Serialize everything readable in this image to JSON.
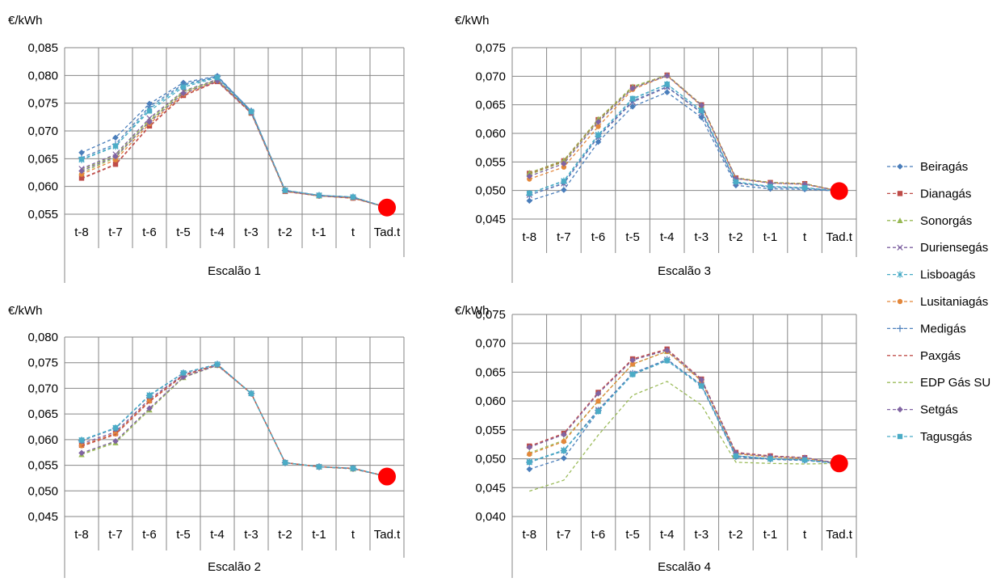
{
  "categories": [
    "t-8",
    "t-7",
    "t-6",
    "t-5",
    "t-4",
    "t-3",
    "t-2",
    "t-1",
    "t",
    "Tad.t"
  ],
  "legend": [
    {
      "name": "Beiragás",
      "color": "#4a7ebb",
      "marker": "diamond"
    },
    {
      "name": "Dianagás",
      "color": "#be4b48",
      "marker": "square"
    },
    {
      "name": "Sonorgás",
      "color": "#98b954",
      "marker": "triangle"
    },
    {
      "name": "Duriensegás",
      "color": "#7d60a0",
      "marker": "x"
    },
    {
      "name": "Lisboagás",
      "color": "#46aac5",
      "marker": "star"
    },
    {
      "name": "Lusitaniagás",
      "color": "#e3873b",
      "marker": "circle"
    },
    {
      "name": "Medigás",
      "color": "#4f81bd",
      "marker": "plus"
    },
    {
      "name": "Paxgás",
      "color": "#c0504d",
      "marker": "none"
    },
    {
      "name": "EDP Gás SU",
      "color": "#9bbb59",
      "marker": "none"
    },
    {
      "name": "Setgás",
      "color": "#8064a2",
      "marker": "diamond"
    },
    {
      "name": "Tagusgás",
      "color": "#4bacc6",
      "marker": "square"
    }
  ],
  "chart_data": [
    {
      "type": "line",
      "title": "Escalão 1",
      "ylabel": "€/kWh",
      "ylim": [
        0.055,
        0.085
      ],
      "ytick_step": 0.005,
      "yticks": [
        "0,055",
        "0,060",
        "0,065",
        "0,070",
        "0,075",
        "0,080",
        "0,085"
      ],
      "categories": [
        "t-8",
        "t-7",
        "t-6",
        "t-5",
        "t-4",
        "t-3",
        "t-2",
        "t-1",
        "t",
        "Tad.t"
      ],
      "grid": true,
      "series": [
        {
          "name": "Beiragás",
          "values": [
            0.0661,
            0.0688,
            0.0749,
            0.0787,
            0.0799,
            0.0736,
            0.0592,
            0.0584,
            0.058,
            null
          ]
        },
        {
          "name": "Dianagás",
          "values": [
            0.0615,
            0.064,
            0.0709,
            0.0764,
            0.0789,
            0.0732,
            0.0591,
            0.0583,
            0.0579,
            null
          ]
        },
        {
          "name": "Sonorgás",
          "values": [
            0.0625,
            0.0652,
            0.0718,
            0.077,
            0.0792,
            0.0733,
            0.0592,
            0.0583,
            0.058,
            null
          ]
        },
        {
          "name": "Duriensegás",
          "values": [
            0.0632,
            0.0658,
            0.0723,
            0.0772,
            0.0793,
            0.0734,
            0.0592,
            0.0584,
            0.058,
            null
          ]
        },
        {
          "name": "Lisboagás",
          "values": [
            0.0648,
            0.0672,
            0.074,
            0.0782,
            0.0797,
            0.0735,
            0.0593,
            0.0584,
            0.0581,
            null
          ]
        },
        {
          "name": "Lusitaniagás",
          "values": [
            0.0622,
            0.0648,
            0.0713,
            0.0766,
            0.079,
            0.0733,
            0.0591,
            0.0583,
            0.0579,
            null
          ]
        },
        {
          "name": "Medigás",
          "values": [
            0.0652,
            0.0676,
            0.0744,
            0.0784,
            0.0798,
            0.0736,
            0.0593,
            0.0584,
            0.0581,
            null
          ]
        },
        {
          "name": "Paxgás",
          "values": [
            0.0614,
            0.0639,
            0.0708,
            0.0763,
            0.0789,
            0.0732,
            0.0591,
            0.0583,
            0.0579,
            null
          ]
        },
        {
          "name": "EDP Gás SU",
          "values": [
            0.063,
            0.0656,
            0.072,
            0.0771,
            0.0791,
            0.0733,
            0.0592,
            0.0583,
            0.058,
            null
          ]
        },
        {
          "name": "Setgás",
          "values": [
            0.0628,
            0.0654,
            0.0716,
            0.0768,
            0.079,
            0.0733,
            0.0592,
            0.0583,
            0.058,
            null
          ]
        },
        {
          "name": "Tagusgás",
          "values": [
            0.0649,
            0.0673,
            0.0736,
            0.0779,
            0.0796,
            0.0735,
            0.0593,
            0.0584,
            0.0581,
            null
          ]
        }
      ],
      "tad_point": {
        "category": "Tad.t",
        "value": 0.0562,
        "color": "#ff0000"
      }
    },
    {
      "type": "line",
      "title": "Escalão 2",
      "ylabel": "€/kWh",
      "ylim": [
        0.045,
        0.08
      ],
      "ytick_step": 0.005,
      "yticks": [
        "0,045",
        "0,050",
        "0,055",
        "0,060",
        "0,065",
        "0,070",
        "0,075",
        "0,080"
      ],
      "categories": [
        "t-8",
        "t-7",
        "t-6",
        "t-5",
        "t-4",
        "t-3",
        "t-2",
        "t-1",
        "t",
        "Tad.t"
      ],
      "grid": true,
      "series": [
        {
          "name": "Beiragás",
          "values": [
            0.0598,
            0.0622,
            0.0686,
            0.073,
            0.0747,
            0.069,
            0.0555,
            0.0547,
            0.0544,
            null
          ]
        },
        {
          "name": "Dianagás",
          "values": [
            0.0589,
            0.0612,
            0.0676,
            0.0726,
            0.0746,
            0.069,
            0.0555,
            0.0547,
            0.0544,
            null
          ]
        },
        {
          "name": "Sonorgás",
          "values": [
            0.0571,
            0.0594,
            0.0658,
            0.0721,
            0.0745,
            0.069,
            0.0555,
            0.0547,
            0.0543,
            null
          ]
        },
        {
          "name": "Duriensegás",
          "values": [
            0.0592,
            0.0615,
            0.0679,
            0.0727,
            0.0746,
            0.069,
            0.0555,
            0.0547,
            0.0544,
            null
          ]
        },
        {
          "name": "Lisboagás",
          "values": [
            0.0599,
            0.0623,
            0.0687,
            0.073,
            0.0747,
            0.069,
            0.0555,
            0.0547,
            0.0544,
            null
          ]
        },
        {
          "name": "Lusitaniagás",
          "values": [
            0.0588,
            0.0611,
            0.0675,
            0.0725,
            0.0746,
            0.069,
            0.0555,
            0.0547,
            0.0544,
            null
          ]
        },
        {
          "name": "Medigás",
          "values": [
            0.0598,
            0.0622,
            0.0686,
            0.073,
            0.0747,
            0.069,
            0.0555,
            0.0547,
            0.0544,
            null
          ]
        },
        {
          "name": "Paxgás",
          "values": [
            0.0587,
            0.061,
            0.0674,
            0.0725,
            0.0746,
            0.069,
            0.0555,
            0.0547,
            0.0544,
            null
          ]
        },
        {
          "name": "EDP Gás SU",
          "values": [
            0.0573,
            0.0596,
            0.066,
            0.0722,
            0.0745,
            0.069,
            0.0555,
            0.0547,
            0.0543,
            null
          ]
        },
        {
          "name": "Setgás",
          "values": [
            0.0574,
            0.0597,
            0.0661,
            0.0722,
            0.0745,
            0.069,
            0.0555,
            0.0547,
            0.0543,
            null
          ]
        },
        {
          "name": "Tagusgás",
          "values": [
            0.0599,
            0.0623,
            0.0686,
            0.073,
            0.0747,
            0.069,
            0.0555,
            0.0547,
            0.0544,
            null
          ]
        }
      ],
      "tad_point": {
        "category": "Tad.t",
        "value": 0.0528,
        "color": "#ff0000"
      }
    },
    {
      "type": "line",
      "title": "Escalão 3",
      "ylabel": "€/kWh",
      "ylim": [
        0.045,
        0.075
      ],
      "ytick_step": 0.005,
      "yticks": [
        "0,045",
        "0,050",
        "0,055",
        "0,060",
        "0,065",
        "0,070",
        "0,075"
      ],
      "categories": [
        "t-8",
        "t-7",
        "t-6",
        "t-5",
        "t-4",
        "t-3",
        "t-2",
        "t-1",
        "t",
        "Tad.t"
      ],
      "grid": true,
      "series": [
        {
          "name": "Beiragás",
          "values": [
            0.0482,
            0.0501,
            0.0585,
            0.0647,
            0.0672,
            0.0628,
            0.0509,
            0.0503,
            0.0502,
            null
          ]
        },
        {
          "name": "Dianagás",
          "values": [
            0.053,
            0.0552,
            0.0624,
            0.0681,
            0.0702,
            0.065,
            0.0522,
            0.0514,
            0.0512,
            null
          ]
        },
        {
          "name": "Sonorgás",
          "values": [
            0.0531,
            0.0553,
            0.0625,
            0.0682,
            0.0702,
            0.065,
            0.0522,
            0.0514,
            0.0512,
            null
          ]
        },
        {
          "name": "Duriensegás",
          "values": [
            0.0492,
            0.0512,
            0.0594,
            0.0655,
            0.0681,
            0.0636,
            0.0513,
            0.0506,
            0.0504,
            null
          ]
        },
        {
          "name": "Lisboagás",
          "values": [
            0.0495,
            0.0517,
            0.0598,
            0.066,
            0.0686,
            0.064,
            0.0515,
            0.0507,
            0.0505,
            null
          ]
        },
        {
          "name": "Lusitaniagás",
          "values": [
            0.052,
            0.0541,
            0.0612,
            0.0677,
            0.0701,
            0.0648,
            0.0521,
            0.0513,
            0.0511,
            null
          ]
        },
        {
          "name": "Medigás",
          "values": [
            0.0492,
            0.0513,
            0.0595,
            0.0657,
            0.0682,
            0.0637,
            0.0514,
            0.0506,
            0.0504,
            null
          ]
        },
        {
          "name": "Paxgás",
          "values": [
            0.0529,
            0.0551,
            0.0623,
            0.068,
            0.0702,
            0.065,
            0.0522,
            0.0514,
            0.0512,
            null
          ]
        },
        {
          "name": "EDP Gás SU",
          "values": [
            0.0528,
            0.055,
            0.0622,
            0.068,
            0.0702,
            0.065,
            0.0522,
            0.0514,
            0.0512,
            null
          ]
        },
        {
          "name": "Setgás",
          "values": [
            0.0525,
            0.0547,
            0.062,
            0.0679,
            0.0701,
            0.0649,
            0.0521,
            0.0513,
            0.0511,
            null
          ]
        },
        {
          "name": "Tagusgás",
          "values": [
            0.0495,
            0.0516,
            0.0597,
            0.0661,
            0.0686,
            0.064,
            0.0515,
            0.0507,
            0.0505,
            null
          ]
        }
      ],
      "tad_point": {
        "category": "Tad.t",
        "value": 0.0499,
        "color": "#ff0000"
      }
    },
    {
      "type": "line",
      "title": "Escalão 4",
      "ylabel": "€/kWh",
      "ylim": [
        0.04,
        0.075
      ],
      "ytick_step": 0.005,
      "yticks": [
        "0,040",
        "0,045",
        "0,050",
        "0,055",
        "0,060",
        "0,065",
        "0,070",
        "0,075"
      ],
      "categories": [
        "t-8",
        "t-7",
        "t-6",
        "t-5",
        "t-4",
        "t-3",
        "t-2",
        "t-1",
        "t",
        "Tad.t"
      ],
      "grid": true,
      "series": [
        {
          "name": "Beiragás",
          "values": [
            0.0482,
            0.0501,
            0.0582,
            0.0646,
            0.067,
            0.0626,
            0.0503,
            0.0499,
            0.0497,
            null
          ]
        },
        {
          "name": "Dianagás",
          "values": [
            0.0522,
            0.0544,
            0.0615,
            0.0673,
            0.069,
            0.0638,
            0.0511,
            0.0505,
            0.0502,
            null
          ]
        },
        {
          "name": "Sonorgás",
          "values": [
            0.051,
            0.0532,
            0.06,
            0.0664,
            0.0686,
            0.0635,
            0.0509,
            0.0503,
            0.0501,
            null
          ]
        },
        {
          "name": "Duriensegás",
          "values": [
            0.0494,
            0.0514,
            0.0585,
            0.0648,
            0.0672,
            0.0628,
            0.0505,
            0.05,
            0.0498,
            null
          ]
        },
        {
          "name": "Lisboagás",
          "values": [
            0.0495,
            0.0515,
            0.0583,
            0.0647,
            0.0671,
            0.0627,
            0.0505,
            0.05,
            0.0498,
            null
          ]
        },
        {
          "name": "Lusitaniagás",
          "values": [
            0.0508,
            0.053,
            0.06,
            0.0664,
            0.0686,
            0.0635,
            0.0509,
            0.0503,
            0.0501,
            null
          ]
        },
        {
          "name": "Medigás",
          "values": [
            0.0494,
            0.0514,
            0.0584,
            0.0648,
            0.0672,
            0.0628,
            0.0505,
            0.05,
            0.0498,
            null
          ]
        },
        {
          "name": "Paxgás",
          "values": [
            0.0521,
            0.0543,
            0.0614,
            0.0672,
            0.0689,
            0.0637,
            0.0511,
            0.0505,
            0.0502,
            null
          ]
        },
        {
          "name": "EDP Gás SU",
          "values": [
            0.0444,
            0.0463,
            0.0541,
            0.061,
            0.0634,
            0.0593,
            0.0494,
            0.0492,
            0.0491,
            null
          ]
        },
        {
          "name": "Setgás",
          "values": [
            0.052,
            0.0542,
            0.0613,
            0.0671,
            0.0688,
            0.0637,
            0.051,
            0.0504,
            0.0502,
            null
          ]
        },
        {
          "name": "Tagusgás",
          "values": [
            0.0494,
            0.0514,
            0.0582,
            0.0646,
            0.067,
            0.0626,
            0.0505,
            0.05,
            0.0498,
            null
          ]
        }
      ],
      "tad_point": {
        "category": "Tad.t",
        "value": 0.0492,
        "color": "#ff0000"
      }
    }
  ]
}
